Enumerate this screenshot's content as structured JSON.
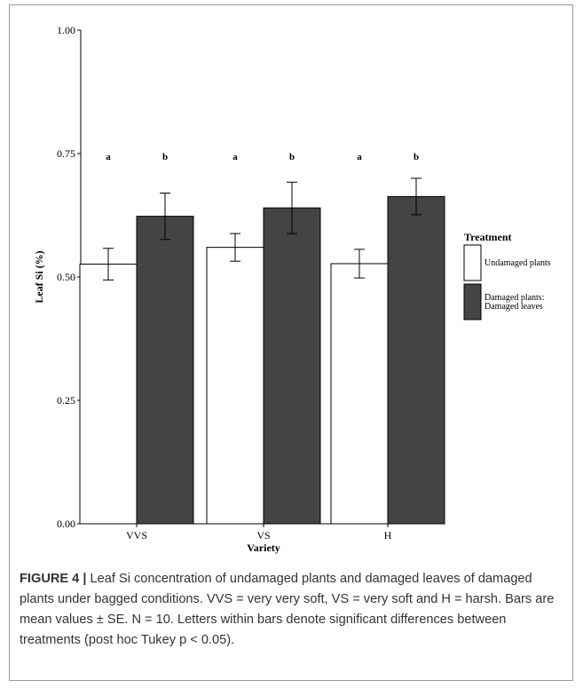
{
  "chart_data": {
    "type": "bar",
    "ylabel": "Leaf Si (%)",
    "xlabel": "Variety",
    "categories": [
      "VVS",
      "VS",
      "H"
    ],
    "ylim": [
      0,
      1
    ],
    "yticks": [
      "0.00",
      "0.25",
      "0.50",
      "0.75",
      "1.00"
    ],
    "ytick_values": [
      0,
      0.25,
      0.5,
      0.75,
      1.0
    ],
    "legend": {
      "title": "Treatment",
      "placement": "right"
    },
    "series": [
      {
        "name": "Undamaged plants",
        "color": "#ffffff",
        "values": [
          0.526,
          0.56,
          0.527
        ],
        "error": [
          0.032,
          0.028,
          0.029
        ],
        "letters": [
          "a",
          "a",
          "a"
        ]
      },
      {
        "name": "Damaged plants:\nDamaged leaves",
        "color": "#444444",
        "values": [
          0.623,
          0.64,
          0.663
        ],
        "error": [
          0.047,
          0.052,
          0.037
        ],
        "letters": [
          "b",
          "b",
          "b"
        ]
      }
    ],
    "letter_level": 0.745,
    "grid": false
  },
  "caption": {
    "label": "FIGURE 4 |",
    "text": " Leaf Si concentration of undamaged plants and damaged leaves of damaged plants under bagged conditions. VVS = very very soft, VS = very soft and H = harsh. Bars are mean values ± SE. N = 10. Letters within bars denote significant differences between treatments (post hoc Tukey p < 0.05)."
  }
}
